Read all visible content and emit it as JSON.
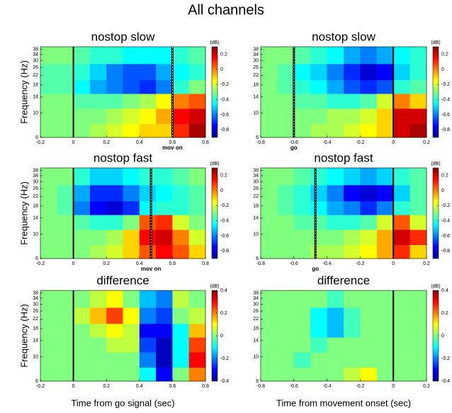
{
  "title": "All channels",
  "chart_data": [
    {
      "type": "heatmap",
      "title": "nostop slow",
      "ylabel": "Frequency (Hz)",
      "xbins": [
        -0.2,
        -0.1,
        0,
        0.1,
        0.2,
        0.3,
        0.4,
        0.5,
        0.6,
        0.7,
        0.8
      ],
      "ybins": [
        6,
        8,
        11,
        15,
        20,
        28,
        40
      ],
      "z": [
        [
          -0.3,
          -0.3,
          -0.3,
          -0.25,
          -0.2,
          -0.15,
          -0.1,
          -0.1,
          0.1,
          0.25
        ],
        [
          -0.3,
          -0.3,
          -0.3,
          -0.3,
          -0.25,
          -0.2,
          -0.15,
          -0.05,
          0.15,
          0.2
        ],
        [
          -0.3,
          -0.3,
          -0.35,
          -0.35,
          -0.35,
          -0.3,
          -0.25,
          -0.15,
          0,
          0.05
        ],
        [
          -0.35,
          -0.35,
          -0.45,
          -0.55,
          -0.6,
          -0.65,
          -0.7,
          -0.6,
          -0.4,
          -0.3
        ],
        [
          -0.35,
          -0.35,
          -0.4,
          -0.5,
          -0.6,
          -0.65,
          -0.65,
          -0.55,
          -0.45,
          -0.4
        ],
        [
          -0.3,
          -0.3,
          -0.35,
          -0.4,
          -0.4,
          -0.45,
          -0.45,
          -0.45,
          -0.4,
          -0.35
        ]
      ],
      "xlim": [
        -0.2,
        0.8
      ],
      "xticks": [
        -0.2,
        0,
        0.2,
        0.4,
        0.6,
        0.8
      ],
      "ylim": [
        6,
        40
      ],
      "yticks": [
        6,
        10,
        14,
        18,
        22,
        26,
        30,
        34,
        38
      ],
      "ylog": true,
      "colorbar": {
        "label": "(dB)",
        "colormap": "jet",
        "clim": [
          -0.9,
          0.3
        ],
        "ticks": [
          0.2,
          0,
          -0.2,
          -0.4,
          -0.6,
          -0.8
        ]
      },
      "events": [
        {
          "x": 0,
          "style": "solid"
        },
        {
          "x": 0.6,
          "style": "dashed",
          "label": "mov on"
        }
      ]
    },
    {
      "type": "heatmap",
      "title": "nostop slow",
      "xbins": [
        -0.8,
        -0.7,
        -0.6,
        -0.5,
        -0.4,
        -0.3,
        -0.2,
        -0.1,
        0,
        0.1,
        0.2
      ],
      "ybins": [
        6,
        8,
        11,
        15,
        20,
        28,
        40
      ],
      "z": [
        [
          -0.3,
          -0.3,
          -0.3,
          -0.25,
          -0.25,
          -0.2,
          -0.15,
          -0.1,
          0.2,
          0.25
        ],
        [
          -0.3,
          -0.3,
          -0.3,
          -0.3,
          -0.25,
          -0.25,
          -0.2,
          -0.1,
          0.2,
          0.2
        ],
        [
          -0.3,
          -0.3,
          -0.35,
          -0.35,
          -0.4,
          -0.4,
          -0.35,
          -0.2,
          0,
          -0.1
        ],
        [
          -0.3,
          -0.35,
          -0.4,
          -0.45,
          -0.55,
          -0.65,
          -0.7,
          -0.65,
          -0.4,
          -0.35
        ],
        [
          -0.3,
          -0.35,
          -0.45,
          -0.5,
          -0.6,
          -0.7,
          -0.8,
          -0.75,
          -0.5,
          -0.4
        ],
        [
          -0.3,
          -0.3,
          -0.35,
          -0.4,
          -0.45,
          -0.55,
          -0.6,
          -0.55,
          -0.45,
          -0.4
        ]
      ],
      "xlim": [
        -0.8,
        0.2
      ],
      "xticks": [
        -0.8,
        -0.6,
        -0.4,
        -0.2,
        0,
        0.2
      ],
      "ylim": [
        6,
        40
      ],
      "yticks": [
        6,
        10,
        14,
        18,
        22,
        26,
        30,
        34,
        38
      ],
      "ylog": true,
      "colorbar": {
        "label": "(dB)",
        "colormap": "jet",
        "clim": [
          -0.9,
          0.3
        ],
        "ticks": [
          0.2,
          0,
          -0.2,
          -0.4,
          -0.6,
          -0.8
        ]
      },
      "events": [
        {
          "x": 0,
          "style": "solid"
        },
        {
          "x": -0.6,
          "style": "dashed",
          "label": "go"
        }
      ]
    },
    {
      "type": "heatmap",
      "title": "nostop fast",
      "ylabel": "Frequency (Hz)",
      "xbins": [
        -0.2,
        -0.1,
        0,
        0.1,
        0.2,
        0.3,
        0.4,
        0.5,
        0.6,
        0.7,
        0.8
      ],
      "ybins": [
        6,
        8,
        11,
        15,
        20,
        28,
        40
      ],
      "z": [
        [
          -0.3,
          -0.3,
          -0.3,
          -0.25,
          -0.2,
          -0.1,
          0.05,
          0.15,
          0.05,
          -0.1
        ],
        [
          -0.3,
          -0.3,
          -0.3,
          -0.3,
          -0.25,
          -0.1,
          0.15,
          0.2,
          0,
          -0.2
        ],
        [
          -0.3,
          -0.3,
          -0.35,
          -0.4,
          -0.4,
          -0.3,
          0.05,
          0.1,
          -0.2,
          -0.3
        ],
        [
          -0.3,
          -0.35,
          -0.6,
          -0.75,
          -0.8,
          -0.7,
          -0.45,
          -0.4,
          -0.4,
          -0.35
        ],
        [
          -0.3,
          -0.35,
          -0.55,
          -0.7,
          -0.7,
          -0.6,
          -0.5,
          -0.45,
          -0.4,
          -0.35
        ],
        [
          -0.3,
          -0.3,
          -0.4,
          -0.5,
          -0.5,
          -0.45,
          -0.4,
          -0.4,
          -0.35,
          -0.3
        ]
      ],
      "xlim": [
        -0.2,
        0.8
      ],
      "xticks": [
        -0.2,
        0,
        0.2,
        0.4,
        0.6,
        0.8
      ],
      "ylim": [
        6,
        40
      ],
      "yticks": [
        6,
        10,
        14,
        18,
        22,
        26,
        30,
        34,
        38
      ],
      "ylog": true,
      "colorbar": {
        "label": "(dB)",
        "colormap": "jet",
        "clim": [
          -0.9,
          0.3
        ],
        "ticks": [
          0.2,
          0,
          -0.2,
          -0.4,
          -0.6,
          -0.8
        ]
      },
      "events": [
        {
          "x": 0,
          "style": "solid"
        },
        {
          "x": 0.47,
          "style": "dashed",
          "label": "mov on"
        }
      ]
    },
    {
      "type": "heatmap",
      "title": "nostop fast",
      "xbins": [
        -0.8,
        -0.7,
        -0.6,
        -0.5,
        -0.4,
        -0.3,
        -0.2,
        -0.1,
        0,
        0.1,
        0.2
      ],
      "ybins": [
        6,
        8,
        11,
        15,
        20,
        28,
        40
      ],
      "z": [
        [
          -0.3,
          -0.3,
          -0.3,
          -0.25,
          -0.25,
          -0.2,
          -0.15,
          -0.05,
          0.1,
          -0.1
        ],
        [
          -0.3,
          -0.3,
          -0.3,
          -0.3,
          -0.3,
          -0.25,
          -0.2,
          -0.05,
          0.2,
          0.1
        ],
        [
          -0.3,
          -0.3,
          -0.35,
          -0.35,
          -0.4,
          -0.4,
          -0.35,
          -0.2,
          0.05,
          -0.2
        ],
        [
          -0.3,
          -0.35,
          -0.4,
          -0.45,
          -0.55,
          -0.6,
          -0.7,
          -0.6,
          -0.4,
          -0.35
        ],
        [
          -0.3,
          -0.35,
          -0.4,
          -0.5,
          -0.6,
          -0.75,
          -0.8,
          -0.75,
          -0.5,
          -0.35
        ],
        [
          -0.3,
          -0.3,
          -0.35,
          -0.4,
          -0.45,
          -0.5,
          -0.55,
          -0.5,
          -0.4,
          -0.35
        ]
      ],
      "xlim": [
        -0.8,
        0.2
      ],
      "xticks": [
        -0.8,
        -0.6,
        -0.4,
        -0.2,
        0,
        0.2
      ],
      "ylim": [
        6,
        40
      ],
      "yticks": [
        6,
        10,
        14,
        18,
        22,
        26,
        30,
        34,
        38
      ],
      "ylog": true,
      "colorbar": {
        "label": "(dB)",
        "colormap": "jet",
        "clim": [
          -0.9,
          0.3
        ],
        "ticks": [
          0.2,
          0,
          -0.2,
          -0.4,
          -0.6,
          -0.8
        ]
      },
      "events": [
        {
          "x": 0,
          "style": "solid"
        },
        {
          "x": -0.47,
          "style": "dashed",
          "label": "go"
        }
      ]
    },
    {
      "type": "heatmap",
      "title": "difference",
      "ylabel": "Frequency (Hz)",
      "xlabel": "Time from go signal (sec)",
      "xbins": [
        -0.2,
        -0.1,
        0,
        0.1,
        0.2,
        0.3,
        0.4,
        0.5,
        0.6,
        0.7,
        0.8
      ],
      "ybins": [
        6,
        8,
        11,
        15,
        20,
        28,
        40
      ],
      "z": [
        [
          0,
          0,
          0,
          0,
          0,
          0,
          -0.1,
          -0.3,
          0,
          0.2
        ],
        [
          0,
          0,
          0,
          0,
          0,
          0,
          -0.2,
          -0.35,
          -0.1,
          0.3
        ],
        [
          0,
          0,
          0,
          0,
          0.05,
          0.05,
          -0.25,
          -0.35,
          -0.1,
          0.25
        ],
        [
          0,
          0,
          0,
          0.05,
          0.1,
          0.05,
          -0.3,
          -0.3,
          -0.1,
          0.15
        ],
        [
          0,
          0,
          0.05,
          0.15,
          0.25,
          0.1,
          -0.2,
          -0.25,
          0,
          0.05
        ],
        [
          0,
          0,
          0,
          0.05,
          0.1,
          0,
          -0.15,
          -0.2,
          0.05,
          0
        ]
      ],
      "xlim": [
        -0.2,
        0.8
      ],
      "xticks": [
        -0.2,
        0,
        0.2,
        0.4,
        0.6,
        0.8
      ],
      "ylim": [
        6,
        40
      ],
      "yticks": [
        6,
        10,
        14,
        18,
        22,
        26,
        30,
        34,
        38
      ],
      "ylog": true,
      "colorbar": {
        "label": "(dB)",
        "colormap": "jet",
        "clim": [
          -0.4,
          0.4
        ],
        "ticks": [
          0.4,
          0.2,
          0,
          -0.2,
          -0.4
        ]
      },
      "events": [
        {
          "x": 0,
          "style": "solid"
        }
      ]
    },
    {
      "type": "heatmap",
      "title": "difference",
      "xlabel": "Time from movement onset (sec)",
      "xbins": [
        -0.8,
        -0.7,
        -0.6,
        -0.5,
        -0.4,
        -0.3,
        -0.2,
        -0.1,
        0,
        0.1,
        0.2
      ],
      "ybins": [
        6,
        8,
        11,
        15,
        20,
        28,
        40
      ],
      "z": [
        [
          0,
          0,
          0,
          0,
          0,
          0.05,
          0.1,
          0,
          0,
          0
        ],
        [
          0,
          0,
          -0.05,
          0,
          0,
          0,
          0,
          0,
          0,
          0
        ],
        [
          0,
          0,
          0,
          -0.05,
          0,
          0,
          0,
          0,
          0,
          0
        ],
        [
          0,
          0,
          0,
          -0.1,
          -0.15,
          -0.05,
          0,
          0,
          0,
          0
        ],
        [
          0,
          0,
          0,
          -0.1,
          -0.15,
          -0.05,
          0,
          0,
          0,
          0
        ],
        [
          0,
          0,
          0,
          0,
          -0.05,
          0,
          0,
          0,
          0,
          0
        ]
      ],
      "xlim": [
        -0.8,
        0.2
      ],
      "xticks": [
        -0.8,
        -0.6,
        -0.4,
        -0.2,
        0,
        0.2
      ],
      "ylim": [
        6,
        40
      ],
      "yticks": [
        6,
        10,
        14,
        18,
        22,
        26,
        30,
        34,
        38
      ],
      "ylog": true,
      "colorbar": {
        "label": "(dB)",
        "colormap": "jet",
        "clim": [
          -0.4,
          0.4
        ],
        "ticks": [
          0.4,
          0.2,
          0,
          -0.2,
          -0.4
        ]
      },
      "events": [
        {
          "x": 0,
          "style": "solid"
        }
      ]
    }
  ]
}
